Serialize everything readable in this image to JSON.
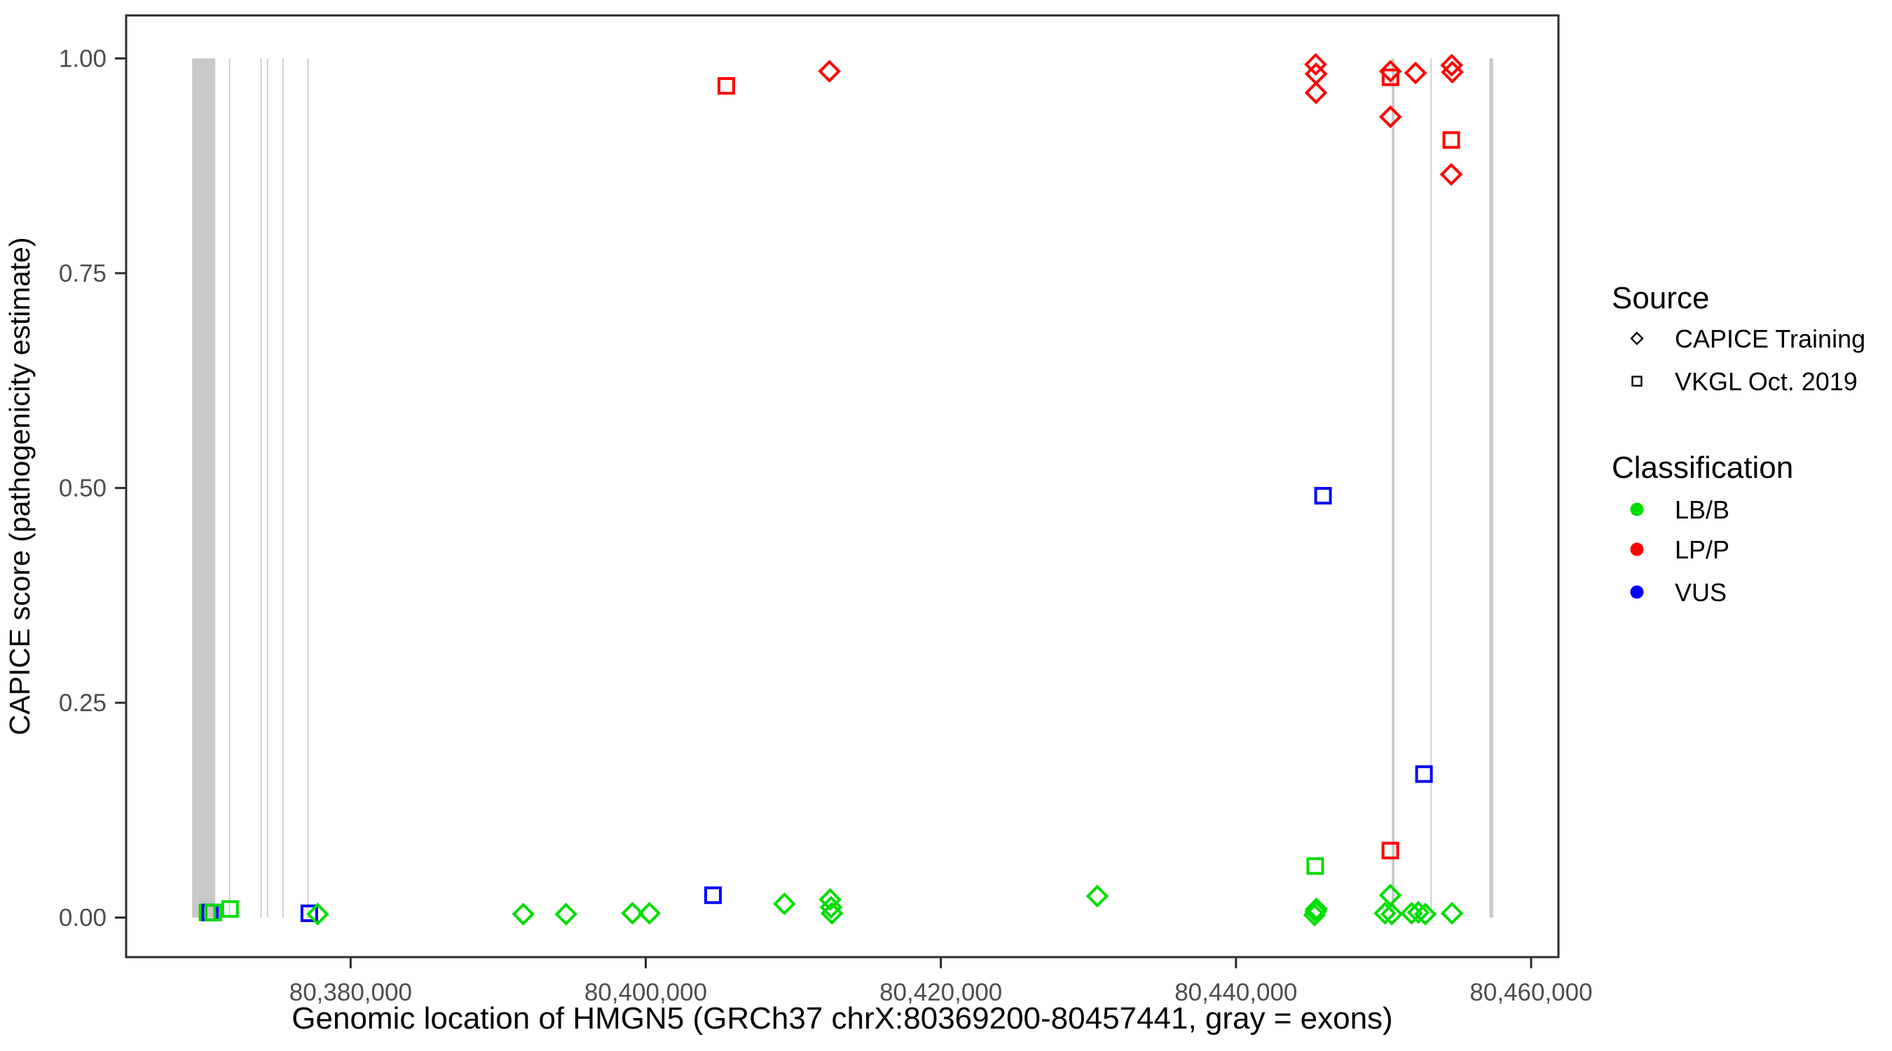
{
  "figure": {
    "background": "#ffffff"
  },
  "legend": {
    "source": {
      "title": "Source",
      "items": [
        {
          "label": "CAPICE Training",
          "shape": "diamond"
        },
        {
          "label": "VKGL Oct. 2019",
          "shape": "square"
        }
      ]
    },
    "classification": {
      "title": "Classification",
      "items": [
        {
          "label": "LB/B",
          "color": "#00DD00"
        },
        {
          "label": "LP/P",
          "color": "#FF0000"
        },
        {
          "label": "VUS",
          "color": "#0000FF"
        }
      ]
    }
  },
  "chart_data": {
    "type": "scatter",
    "title": "",
    "xlabel": "Genomic location of HMGN5 (GRCh37 chrX:80369200-80457441, gray = exons)",
    "ylabel": "CAPICE score (pathogenicity estimate)",
    "xlim": [
      80369200,
      80457441
    ],
    "ylim": [
      0,
      1
    ],
    "xlim_render": [
      80364788,
      80461853
    ],
    "ylim_render": [
      -0.046,
      1.05
    ],
    "grid": "off",
    "legend_position": "right",
    "x_ticks": [
      {
        "value": 80380000,
        "label": "80,380,000"
      },
      {
        "value": 80400000,
        "label": "80,400,000"
      },
      {
        "value": 80420000,
        "label": "80,420,000"
      },
      {
        "value": 80440000,
        "label": "80,440,000"
      },
      {
        "value": 80460000,
        "label": "80,460,000"
      }
    ],
    "y_ticks": [
      {
        "value": 0.0,
        "label": "0.00"
      },
      {
        "value": 0.25,
        "label": "0.25"
      },
      {
        "value": 0.5,
        "label": "0.50"
      },
      {
        "value": 0.75,
        "label": "0.75"
      },
      {
        "value": 1.0,
        "label": "1.00"
      }
    ],
    "exon_color": "#C9C9C9",
    "exon_note": "gray = exons",
    "exon_regions": [
      [
        80369260,
        80370830
      ],
      [
        80371760,
        80371820
      ],
      [
        80373900,
        80373960
      ],
      [
        80374330,
        80374390
      ],
      [
        80375370,
        80375430
      ],
      [
        80377080,
        80377140
      ],
      [
        80450560,
        80450740
      ],
      [
        80453180,
        80453250
      ],
      [
        80457180,
        80457430
      ]
    ],
    "classification_colors": {
      "LB/B": "#00DD00",
      "LP/P": "#FF0000",
      "VUS": "#0000FF"
    },
    "series": [
      {
        "name": "CAPICE Training",
        "shape": "diamond",
        "points": [
          {
            "pos": 80377767,
            "score": 0.004,
            "cls": "LB/B"
          },
          {
            "pos": 80391700,
            "score": 0.004,
            "cls": "LB/B"
          },
          {
            "pos": 80394600,
            "score": 0.004,
            "cls": "LB/B"
          },
          {
            "pos": 80399100,
            "score": 0.005,
            "cls": "LB/B"
          },
          {
            "pos": 80400250,
            "score": 0.005,
            "cls": "LB/B"
          },
          {
            "pos": 80409400,
            "score": 0.016,
            "cls": "LB/B"
          },
          {
            "pos": 80412500,
            "score": 0.021,
            "cls": "LB/B"
          },
          {
            "pos": 80412560,
            "score": 0.012,
            "cls": "LB/B"
          },
          {
            "pos": 80412620,
            "score": 0.005,
            "cls": "LB/B"
          },
          {
            "pos": 80430600,
            "score": 0.025,
            "cls": "LB/B"
          },
          {
            "pos": 80445330,
            "score": 0.003,
            "cls": "LB/B"
          },
          {
            "pos": 80445400,
            "score": 0.007,
            "cls": "LB/B"
          },
          {
            "pos": 80445450,
            "score": 0.01,
            "cls": "LB/B"
          },
          {
            "pos": 80450100,
            "score": 0.005,
            "cls": "LB/B"
          },
          {
            "pos": 80450560,
            "score": 0.004,
            "cls": "LB/B"
          },
          {
            "pos": 80450460,
            "score": 0.026,
            "cls": "LB/B"
          },
          {
            "pos": 80451900,
            "score": 0.005,
            "cls": "LB/B"
          },
          {
            "pos": 80452360,
            "score": 0.006,
            "cls": "LB/B"
          },
          {
            "pos": 80452830,
            "score": 0.004,
            "cls": "LB/B"
          },
          {
            "pos": 80454640,
            "score": 0.005,
            "cls": "LB/B"
          },
          {
            "pos": 80412450,
            "score": 0.985,
            "cls": "LP/P"
          },
          {
            "pos": 80445400,
            "score": 0.993,
            "cls": "LP/P"
          },
          {
            "pos": 80445430,
            "score": 0.982,
            "cls": "LP/P"
          },
          {
            "pos": 80445420,
            "score": 0.96,
            "cls": "LP/P"
          },
          {
            "pos": 80450470,
            "score": 0.985,
            "cls": "LP/P"
          },
          {
            "pos": 80450470,
            "score": 0.932,
            "cls": "LP/P"
          },
          {
            "pos": 80452170,
            "score": 0.983,
            "cls": "LP/P"
          },
          {
            "pos": 80454620,
            "score": 0.992,
            "cls": "LP/P"
          },
          {
            "pos": 80454660,
            "score": 0.984,
            "cls": "LP/P"
          },
          {
            "pos": 80454590,
            "score": 0.865,
            "cls": "LP/P"
          }
        ]
      },
      {
        "name": "VKGL Oct. 2019",
        "shape": "square",
        "points": [
          {
            "pos": 80370300,
            "score": 0.006,
            "cls": "LB/B"
          },
          {
            "pos": 80370480,
            "score": 0.006,
            "cls": "VUS"
          },
          {
            "pos": 80370700,
            "score": 0.006,
            "cls": "LB/B"
          },
          {
            "pos": 80371830,
            "score": 0.01,
            "cls": "LB/B"
          },
          {
            "pos": 80377200,
            "score": 0.005,
            "cls": "VUS"
          },
          {
            "pos": 80404560,
            "score": 0.026,
            "cls": "VUS"
          },
          {
            "pos": 80405460,
            "score": 0.968,
            "cls": "LP/P"
          },
          {
            "pos": 80445370,
            "score": 0.06,
            "cls": "LB/B"
          },
          {
            "pos": 80445900,
            "score": 0.491,
            "cls": "VUS"
          },
          {
            "pos": 80450460,
            "score": 0.078,
            "cls": "LP/P"
          },
          {
            "pos": 80450470,
            "score": 0.978,
            "cls": "LP/P"
          },
          {
            "pos": 80452740,
            "score": 0.167,
            "cls": "VUS"
          },
          {
            "pos": 80454590,
            "score": 0.905,
            "cls": "LP/P"
          }
        ]
      }
    ],
    "style": {
      "panel_border_color": "#2B2B2B",
      "tick_color": "#2B2B2B",
      "tick_label_color": "#4D4D4D",
      "axis_title_color": "#000000"
    }
  }
}
